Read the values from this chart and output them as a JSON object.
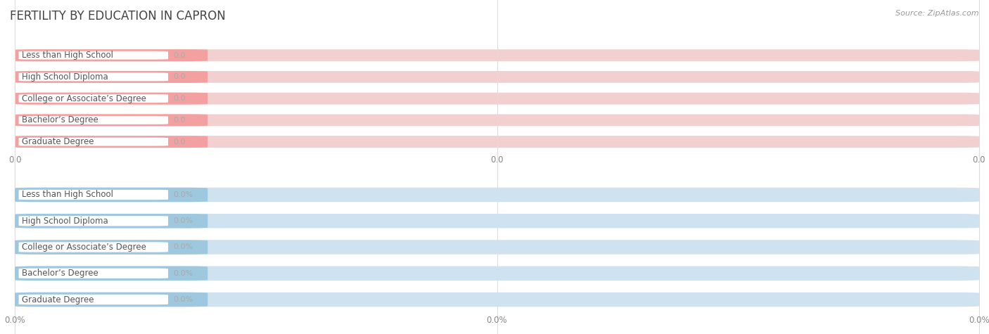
{
  "title": "FERTILITY BY EDUCATION IN CAPRON",
  "source": "Source: ZipAtlas.com",
  "categories": [
    "Less than High School",
    "High School Diploma",
    "College or Associate’s Degree",
    "Bachelor’s Degree",
    "Graduate Degree"
  ],
  "top_values": [
    0.0,
    0.0,
    0.0,
    0.0,
    0.0
  ],
  "bottom_values": [
    0.0,
    0.0,
    0.0,
    0.0,
    0.0
  ],
  "top_bar_color": "#f4a0a0",
  "top_bg_color": "#f2d0d0",
  "bottom_bar_color": "#9dc8e0",
  "bottom_bg_color": "#cfe2ef",
  "label_bg_color": "#ffffff",
  "top_label_suffix": "",
  "bottom_label_suffix": "%",
  "background_color": "#ffffff",
  "grid_color": "#dddddd",
  "title_fontsize": 12,
  "label_fontsize": 8.5,
  "tick_fontsize": 8.5,
  "source_fontsize": 8,
  "x_tick_labels_top": [
    "0.0",
    "0.0",
    "0.0"
  ],
  "x_tick_labels_bottom": [
    "0.0%",
    "0.0%",
    "0.0%"
  ]
}
